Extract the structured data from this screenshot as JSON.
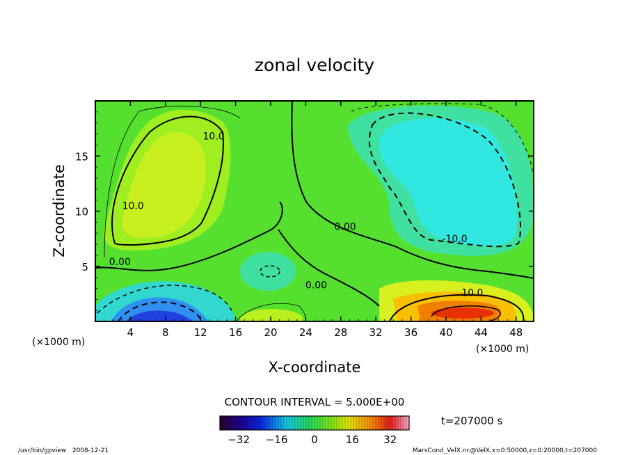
{
  "chart_data": {
    "type": "contour",
    "title": "zonal velocity",
    "xlabel": "X-coordinate",
    "ylabel": "Z-coordinate",
    "x_unit": "(×1000 m)",
    "z_unit": "(×1000 m)",
    "xlim": [
      0,
      50
    ],
    "zlim": [
      0,
      20
    ],
    "x_ticks": [
      4,
      8,
      12,
      16,
      20,
      24,
      28,
      32,
      36,
      40,
      44,
      48
    ],
    "z_ticks": [
      5,
      10,
      15
    ],
    "contour_interval": 5.0,
    "contour_interval_label": "CONTOUR INTERVAL = 5.000E+00",
    "contour_labels": [
      {
        "text": "10.0",
        "x": 13.5,
        "z": 16.5
      },
      {
        "text": "10.0",
        "x": 4.3,
        "z": 10.2
      },
      {
        "text": "0.00",
        "x": 2.8,
        "z": 5.1
      },
      {
        "text": "0.00",
        "x": 28.5,
        "z": 8.3
      },
      {
        "text": "0.00",
        "x": 25.2,
        "z": 3.0
      },
      {
        "text": "-10.0",
        "x": 41.0,
        "z": 7.2
      },
      {
        "text": "10.0",
        "x": 43.0,
        "z": 2.3
      }
    ],
    "colorbar": {
      "range": [
        -40,
        40
      ],
      "ticks": [
        -32,
        -16,
        0,
        16,
        32
      ],
      "colormap": "rainbow (purple-blue-cyan-green-yellow-red-pink)"
    },
    "time_label": "t=207000 s",
    "grid": false
  },
  "footer": {
    "left": "/usr/bin/gpview   2008-12-21",
    "right": "MarsCond_VelX.nc@VelX,x=0:50000,z=0:20000,t=207000"
  }
}
